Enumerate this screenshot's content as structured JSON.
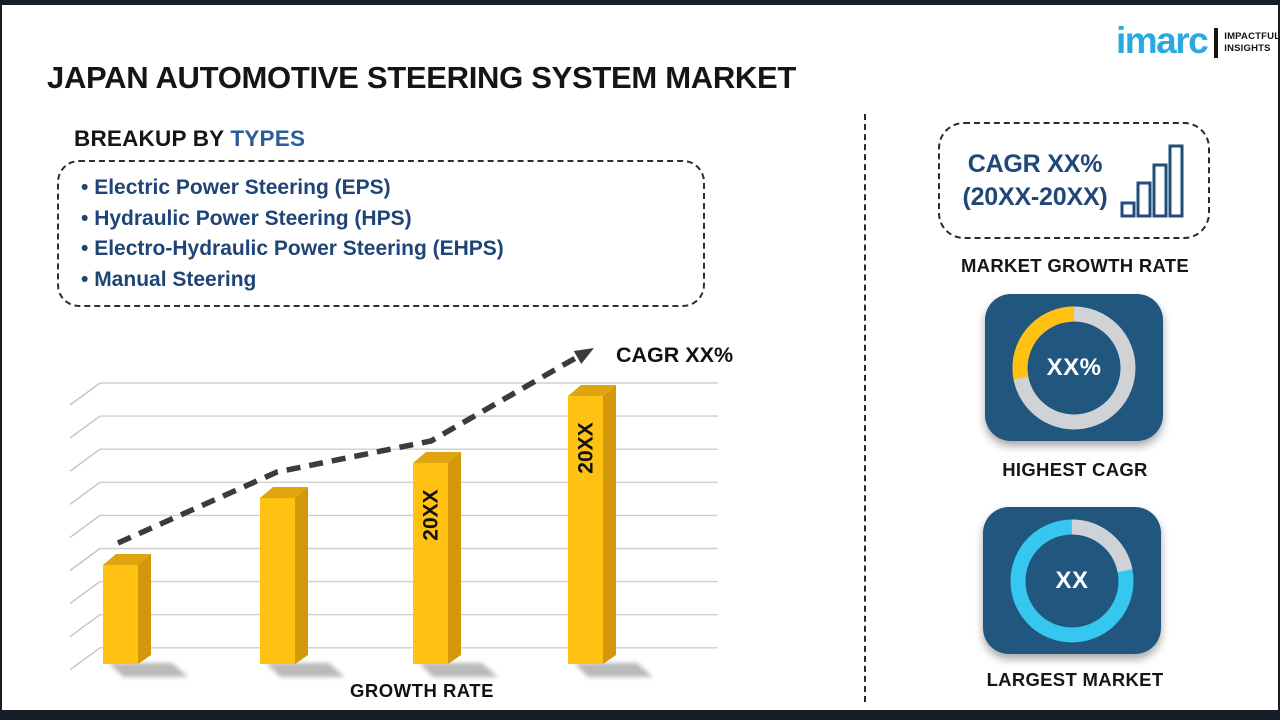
{
  "page": {
    "title": "JAPAN AUTOMOTIVE STEERING SYSTEM MARKET"
  },
  "logo": {
    "brand": "imarc",
    "tagline_line1": "IMPACTFUL",
    "tagline_line2": "INSIGHTS",
    "brand_color": "#29a9e1"
  },
  "breakup": {
    "heading_prefix": "BREAKUP BY",
    "heading_highlight": "TYPES",
    "items": [
      "Electric Power Steering (EPS)",
      "Hydraulic Power Steering (HPS)",
      "Electro-Hydraulic Power Steering (EHPS)",
      "Manual Steering"
    ]
  },
  "chart_data": {
    "type": "bar",
    "title": "",
    "xlabel": "GROWTH RATE",
    "ylabel": "",
    "categories": [
      "",
      "",
      "20XX",
      "20XX"
    ],
    "values": [
      37,
      62,
      75,
      100
    ],
    "values_note": "relative bar heights in % of tallest bar; no numeric axis shown",
    "bar_labels": [
      "",
      "",
      "20XX",
      "20XX"
    ],
    "trend_label": "CAGR XX%",
    "trend_style": "dashed-arrow-rising",
    "gridlines": 9,
    "bar_color": "#ffc112",
    "bar_top_color": "#dfa50f",
    "bar_side_color": "#d3980a",
    "grid_color": "#cfcfcf",
    "trend_color": "#3b3b3b"
  },
  "right_panel": {
    "growth_card": {
      "line1": "CAGR XX%",
      "line2": "(20XX-20XX)",
      "label": "MARKET GROWTH RATE",
      "icon": "growth-bars-icon",
      "icon_color": "#1f4e79"
    },
    "highest_cagr": {
      "value": "XX%",
      "label": "HIGHEST CAGR",
      "segment_percent": 28,
      "segment_color": "#ffc112",
      "ring_color": "#d0d3d6",
      "direction": "ccw"
    },
    "largest_market": {
      "value": "XX",
      "label": "LARGEST MARKET",
      "segment_percent": 22,
      "segment_color": "#d0d3d6",
      "ring_color": "#35c7ef",
      "direction": "cw"
    }
  },
  "colors": {
    "frame": "#171e28",
    "card_blue": "#21567f",
    "heading_blue": "#2a5d9c",
    "list_text": "#1e4478"
  }
}
